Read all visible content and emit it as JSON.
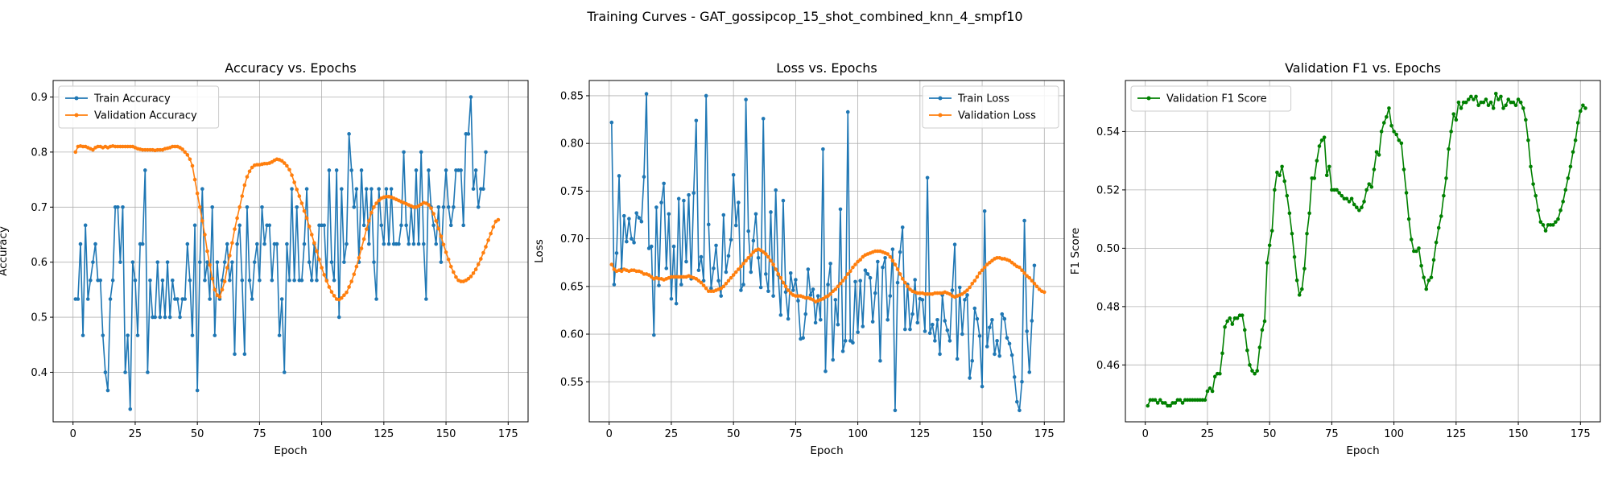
{
  "title": "Training Curves - GAT_gossipcop_15_shot_combined_knn_4_smpf10",
  "chart_data": [
    {
      "type": "line",
      "title": "Accuracy vs. Epochs",
      "xlabel": "Epoch",
      "ylabel": "Accuracy",
      "xlim": [
        -8,
        183
      ],
      "ylim": [
        0.31,
        0.93
      ],
      "xticks": [
        0,
        25,
        50,
        75,
        100,
        125,
        150,
        175
      ],
      "yticks": [
        0.4,
        0.5,
        0.6,
        0.7,
        0.8,
        0.9
      ],
      "ytick_labels": [
        "0.4",
        "0.5",
        "0.6",
        "0.7",
        "0.8",
        "0.9"
      ],
      "grid": true,
      "legend_position": "upper-left",
      "series": [
        {
          "name": "Train Accuracy",
          "color": "#1f77b4",
          "x_start": 1,
          "values": [
            0.533,
            0.533,
            0.633,
            0.467,
            0.667,
            0.533,
            0.567,
            0.6,
            0.633,
            0.567,
            0.567,
            0.467,
            0.4,
            0.367,
            0.533,
            0.567,
            0.7,
            0.7,
            0.6,
            0.7,
            0.4,
            0.467,
            0.333,
            0.6,
            0.567,
            0.467,
            0.633,
            0.633,
            0.767,
            0.4,
            0.567,
            0.5,
            0.5,
            0.6,
            0.5,
            0.567,
            0.5,
            0.6,
            0.5,
            0.567,
            0.533,
            0.533,
            0.5,
            0.533,
            0.533,
            0.633,
            0.567,
            0.467,
            0.667,
            0.367,
            0.6,
            0.733,
            0.567,
            0.6,
            0.533,
            0.7,
            0.467,
            0.6,
            0.533,
            0.567,
            0.6,
            0.633,
            0.567,
            0.6,
            0.433,
            0.633,
            0.667,
            0.567,
            0.433,
            0.7,
            0.567,
            0.533,
            0.6,
            0.633,
            0.567,
            0.7,
            0.633,
            0.667,
            0.667,
            0.567,
            0.633,
            0.633,
            0.467,
            0.533,
            0.4,
            0.633,
            0.567,
            0.733,
            0.567,
            0.7,
            0.567,
            0.567,
            0.633,
            0.733,
            0.6,
            0.567,
            0.633,
            0.567,
            0.667,
            0.667,
            0.667,
            0.567,
            0.767,
            0.6,
            0.567,
            0.767,
            0.5,
            0.733,
            0.6,
            0.633,
            0.833,
            0.767,
            0.7,
            0.733,
            0.6,
            0.767,
            0.667,
            0.733,
            0.633,
            0.733,
            0.6,
            0.533,
            0.733,
            0.667,
            0.633,
            0.733,
            0.633,
            0.733,
            0.633,
            0.633,
            0.633,
            0.667,
            0.8,
            0.667,
            0.633,
            0.7,
            0.633,
            0.767,
            0.633,
            0.8,
            0.633,
            0.533,
            0.767,
            0.7,
            0.667,
            0.633,
            0.7,
            0.6,
            0.7,
            0.767,
            0.7,
            0.667,
            0.7,
            0.767,
            0.767,
            0.767,
            0.667,
            0.833,
            0.833,
            0.9,
            0.733,
            0.767,
            0.7,
            0.733,
            0.733,
            0.8
          ]
        },
        {
          "name": "Validation Accuracy",
          "color": "#ff7f0e",
          "x_start": 1,
          "values": [
            0.8,
            0.81,
            0.811,
            0.81,
            0.81,
            0.808,
            0.806,
            0.804,
            0.808,
            0.81,
            0.81,
            0.808,
            0.81,
            0.808,
            0.81,
            0.811,
            0.81,
            0.81,
            0.81,
            0.81,
            0.81,
            0.81,
            0.81,
            0.81,
            0.808,
            0.806,
            0.805,
            0.804,
            0.804,
            0.804,
            0.804,
            0.804,
            0.803,
            0.804,
            0.804,
            0.804,
            0.806,
            0.807,
            0.808,
            0.81,
            0.81,
            0.81,
            0.808,
            0.805,
            0.8,
            0.795,
            0.787,
            0.775,
            0.75,
            0.725,
            0.7,
            0.675,
            0.65,
            0.62,
            0.595,
            0.57,
            0.55,
            0.54,
            0.537,
            0.55,
            0.565,
            0.59,
            0.612,
            0.635,
            0.66,
            0.68,
            0.7,
            0.72,
            0.74,
            0.755,
            0.765,
            0.772,
            0.776,
            0.777,
            0.777,
            0.778,
            0.779,
            0.779,
            0.78,
            0.782,
            0.785,
            0.787,
            0.786,
            0.784,
            0.78,
            0.775,
            0.768,
            0.758,
            0.745,
            0.732,
            0.72,
            0.707,
            0.693,
            0.68,
            0.665,
            0.65,
            0.635,
            0.62,
            0.605,
            0.59,
            0.577,
            0.566,
            0.555,
            0.546,
            0.539,
            0.533,
            0.532,
            0.535,
            0.54,
            0.545,
            0.555,
            0.565,
            0.578,
            0.592,
            0.608,
            0.625,
            0.642,
            0.66,
            0.675,
            0.69,
            0.7,
            0.707,
            0.712,
            0.716,
            0.718,
            0.719,
            0.719,
            0.718,
            0.716,
            0.714,
            0.712,
            0.71,
            0.708,
            0.706,
            0.704,
            0.702,
            0.7,
            0.7,
            0.702,
            0.705,
            0.708,
            0.707,
            0.704,
            0.698,
            0.688,
            0.675,
            0.661,
            0.647,
            0.632,
            0.618,
            0.605,
            0.592,
            0.582,
            0.573,
            0.567,
            0.565,
            0.565,
            0.567,
            0.57,
            0.574,
            0.58,
            0.587,
            0.596,
            0.606,
            0.617,
            0.628,
            0.64,
            0.652,
            0.664,
            0.674,
            0.677
          ]
        }
      ]
    },
    {
      "type": "line",
      "title": "Loss vs. Epochs",
      "xlabel": "Epoch",
      "ylabel": "Loss",
      "xlim": [
        -8,
        183
      ],
      "ylim": [
        0.508,
        0.866
      ],
      "xticks": [
        0,
        25,
        50,
        75,
        100,
        125,
        150,
        175
      ],
      "yticks": [
        0.55,
        0.6,
        0.65,
        0.7,
        0.75,
        0.8,
        0.85
      ],
      "ytick_labels": [
        "0.55",
        "0.60",
        "0.65",
        "0.70",
        "0.75",
        "0.80",
        "0.85"
      ],
      "grid": true,
      "legend_position": "upper-right",
      "series": [
        {
          "name": "Train Loss",
          "color": "#1f77b4",
          "x_start": 1,
          "values": [
            0.822,
            0.652,
            0.685,
            0.766,
            0.668,
            0.724,
            0.697,
            0.721,
            0.7,
            0.696,
            0.727,
            0.722,
            0.718,
            0.765,
            0.852,
            0.69,
            0.692,
            0.599,
            0.733,
            0.651,
            0.738,
            0.758,
            0.669,
            0.726,
            0.637,
            0.692,
            0.632,
            0.742,
            0.652,
            0.74,
            0.676,
            0.746,
            0.658,
            0.748,
            0.824,
            0.667,
            0.681,
            0.656,
            0.85,
            0.715,
            0.648,
            0.669,
            0.693,
            0.656,
            0.64,
            0.725,
            0.665,
            0.682,
            0.699,
            0.767,
            0.714,
            0.738,
            0.646,
            0.652,
            0.846,
            0.708,
            0.665,
            0.698,
            0.726,
            0.68,
            0.649,
            0.826,
            0.663,
            0.645,
            0.728,
            0.64,
            0.751,
            0.662,
            0.62,
            0.74,
            0.644,
            0.616,
            0.664,
            0.646,
            0.657,
            0.635,
            0.595,
            0.596,
            0.621,
            0.668,
            0.641,
            0.647,
            0.612,
            0.64,
            0.615,
            0.794,
            0.561,
            0.652,
            0.674,
            0.573,
            0.636,
            0.61,
            0.731,
            0.582,
            0.593,
            0.833,
            0.593,
            0.591,
            0.655,
            0.602,
            0.656,
            0.608,
            0.667,
            0.663,
            0.659,
            0.613,
            0.643,
            0.676,
            0.572,
            0.67,
            0.68,
            0.615,
            0.64,
            0.689,
            0.52,
            0.654,
            0.686,
            0.712,
            0.605,
            0.652,
            0.605,
            0.621,
            0.657,
            0.612,
            0.637,
            0.636,
            0.603,
            0.764,
            0.601,
            0.61,
            0.593,
            0.615,
            0.579,
            0.641,
            0.614,
            0.604,
            0.593,
            0.646,
            0.694,
            0.574,
            0.649,
            0.6,
            0.636,
            0.641,
            0.554,
            0.572,
            0.627,
            0.616,
            0.598,
            0.545,
            0.729,
            0.587,
            0.607,
            0.615,
            0.579,
            0.593,
            0.577,
            0.621,
            0.616,
            0.596,
            0.59,
            0.578,
            0.555,
            0.529,
            0.52,
            0.55,
            0.719,
            0.603,
            0.56,
            0.614,
            0.672
          ]
        },
        {
          "name": "Validation Loss",
          "color": "#ff7f0e",
          "x_start": 1,
          "values": [
            0.673,
            0.668,
            0.666,
            0.667,
            0.666,
            0.668,
            0.667,
            0.666,
            0.667,
            0.667,
            0.666,
            0.666,
            0.665,
            0.663,
            0.663,
            0.662,
            0.66,
            0.658,
            0.659,
            0.658,
            0.658,
            0.657,
            0.658,
            0.659,
            0.66,
            0.66,
            0.66,
            0.66,
            0.66,
            0.66,
            0.66,
            0.661,
            0.66,
            0.659,
            0.658,
            0.656,
            0.654,
            0.651,
            0.648,
            0.645,
            0.645,
            0.645,
            0.646,
            0.647,
            0.648,
            0.65,
            0.653,
            0.656,
            0.659,
            0.662,
            0.665,
            0.668,
            0.671,
            0.674,
            0.677,
            0.68,
            0.683,
            0.686,
            0.688,
            0.689,
            0.688,
            0.686,
            0.684,
            0.681,
            0.677,
            0.673,
            0.668,
            0.663,
            0.659,
            0.654,
            0.65,
            0.646,
            0.643,
            0.641,
            0.64,
            0.64,
            0.64,
            0.639,
            0.638,
            0.638,
            0.637,
            0.636,
            0.634,
            0.635,
            0.636,
            0.637,
            0.639,
            0.64,
            0.642,
            0.645,
            0.647,
            0.65,
            0.653,
            0.656,
            0.659,
            0.663,
            0.666,
            0.67,
            0.673,
            0.676,
            0.678,
            0.681,
            0.683,
            0.684,
            0.685,
            0.686,
            0.687,
            0.687,
            0.687,
            0.686,
            0.685,
            0.684,
            0.681,
            0.677,
            0.673,
            0.668,
            0.663,
            0.658,
            0.654,
            0.65,
            0.647,
            0.645,
            0.644,
            0.643,
            0.643,
            0.643,
            0.642,
            0.642,
            0.642,
            0.642,
            0.643,
            0.643,
            0.643,
            0.643,
            0.644,
            0.643,
            0.642,
            0.64,
            0.639,
            0.64,
            0.641,
            0.642,
            0.644,
            0.646,
            0.649,
            0.653,
            0.656,
            0.66,
            0.664,
            0.667,
            0.67,
            0.673,
            0.675,
            0.677,
            0.679,
            0.68,
            0.68,
            0.679,
            0.679,
            0.678,
            0.677,
            0.675,
            0.673,
            0.671,
            0.67,
            0.667,
            0.664,
            0.661,
            0.659,
            0.656,
            0.653,
            0.65,
            0.647,
            0.645,
            0.644
          ]
        }
      ]
    },
    {
      "type": "line",
      "title": "Validation F1 vs. Epochs",
      "xlabel": "Epoch",
      "ylabel": "F1 Score",
      "xlim": [
        -8,
        183
      ],
      "ylim": [
        0.4405,
        0.5575
      ],
      "xticks": [
        0,
        25,
        50,
        75,
        100,
        125,
        150,
        175
      ],
      "yticks": [
        0.46,
        0.48,
        0.5,
        0.52,
        0.54
      ],
      "ytick_labels": [
        "0.46",
        "0.48",
        "0.50",
        "0.52",
        "0.54"
      ],
      "grid": true,
      "legend_position": "upper-left",
      "series": [
        {
          "name": "Validation F1 Score",
          "color": "#008000",
          "x_start": 1,
          "values": [
            0.446,
            0.448,
            0.448,
            0.448,
            0.447,
            0.448,
            0.447,
            0.447,
            0.446,
            0.446,
            0.447,
            0.447,
            0.448,
            0.448,
            0.447,
            0.448,
            0.448,
            0.448,
            0.448,
            0.448,
            0.448,
            0.448,
            0.448,
            0.448,
            0.451,
            0.452,
            0.451,
            0.456,
            0.457,
            0.457,
            0.464,
            0.473,
            0.475,
            0.476,
            0.474,
            0.476,
            0.476,
            0.477,
            0.477,
            0.472,
            0.465,
            0.46,
            0.458,
            0.457,
            0.458,
            0.466,
            0.472,
            0.475,
            0.495,
            0.501,
            0.506,
            0.52,
            0.526,
            0.525,
            0.528,
            0.523,
            0.518,
            0.512,
            0.505,
            0.497,
            0.489,
            0.484,
            0.486,
            0.493,
            0.505,
            0.512,
            0.524,
            0.524,
            0.53,
            0.535,
            0.537,
            0.538,
            0.525,
            0.528,
            0.52,
            0.52,
            0.52,
            0.519,
            0.518,
            0.517,
            0.517,
            0.516,
            0.517,
            0.515,
            0.514,
            0.513,
            0.514,
            0.516,
            0.52,
            0.522,
            0.521,
            0.527,
            0.533,
            0.532,
            0.54,
            0.543,
            0.545,
            0.548,
            0.542,
            0.54,
            0.539,
            0.537,
            0.536,
            0.527,
            0.519,
            0.51,
            0.503,
            0.499,
            0.499,
            0.5,
            0.494,
            0.49,
            0.486,
            0.489,
            0.49,
            0.496,
            0.502,
            0.507,
            0.511,
            0.518,
            0.524,
            0.534,
            0.54,
            0.546,
            0.544,
            0.55,
            0.548,
            0.55,
            0.55,
            0.551,
            0.552,
            0.551,
            0.552,
            0.549,
            0.55,
            0.55,
            0.551,
            0.549,
            0.55,
            0.548,
            0.553,
            0.551,
            0.552,
            0.548,
            0.549,
            0.551,
            0.55,
            0.55,
            0.549,
            0.551,
            0.55,
            0.548,
            0.544,
            0.537,
            0.528,
            0.522,
            0.518,
            0.513,
            0.509,
            0.508,
            0.506,
            0.508,
            0.508,
            0.508,
            0.509,
            0.51,
            0.513,
            0.516,
            0.52,
            0.524,
            0.528,
            0.533,
            0.537,
            0.543,
            0.547,
            0.549,
            0.548
          ]
        }
      ]
    }
  ]
}
